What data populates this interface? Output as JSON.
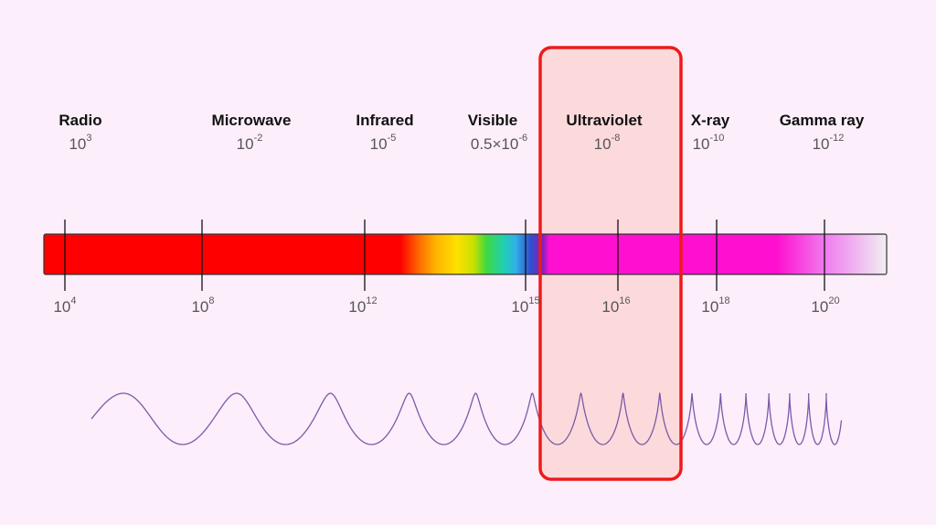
{
  "bands": [
    {
      "name": "Radio",
      "wl_base": "10",
      "wl_exp": "3"
    },
    {
      "name": "Microwave",
      "wl_base": "10",
      "wl_exp": "-2"
    },
    {
      "name": "Infrared",
      "wl_base": "10",
      "wl_exp": "-5"
    },
    {
      "name": "Visible",
      "wl_base": "0.5×10",
      "wl_exp": "-6"
    },
    {
      "name": "Ultraviolet",
      "wl_base": "10",
      "wl_exp": "-8"
    },
    {
      "name": "X-ray",
      "wl_base": "10",
      "wl_exp": "-10"
    },
    {
      "name": "Gamma ray",
      "wl_base": "10",
      "wl_exp": "-12"
    }
  ],
  "frequencies": [
    {
      "base": "10",
      "exp": "4"
    },
    {
      "base": "10",
      "exp": "8"
    },
    {
      "base": "10",
      "exp": "12"
    },
    {
      "base": "10",
      "exp": "15"
    },
    {
      "base": "10",
      "exp": "16"
    },
    {
      "base": "10",
      "exp": "18"
    },
    {
      "base": "10",
      "exp": "20"
    }
  ],
  "highlighted_band": "Ultraviolet",
  "colors": {
    "background": "#fdeefc",
    "highlight_stroke": "#f01a1a",
    "highlight_fill": "#fbd6d6",
    "wave": "#7a5aa8",
    "radio": "#ff0000",
    "ultraviolet": "#ff10d0"
  }
}
